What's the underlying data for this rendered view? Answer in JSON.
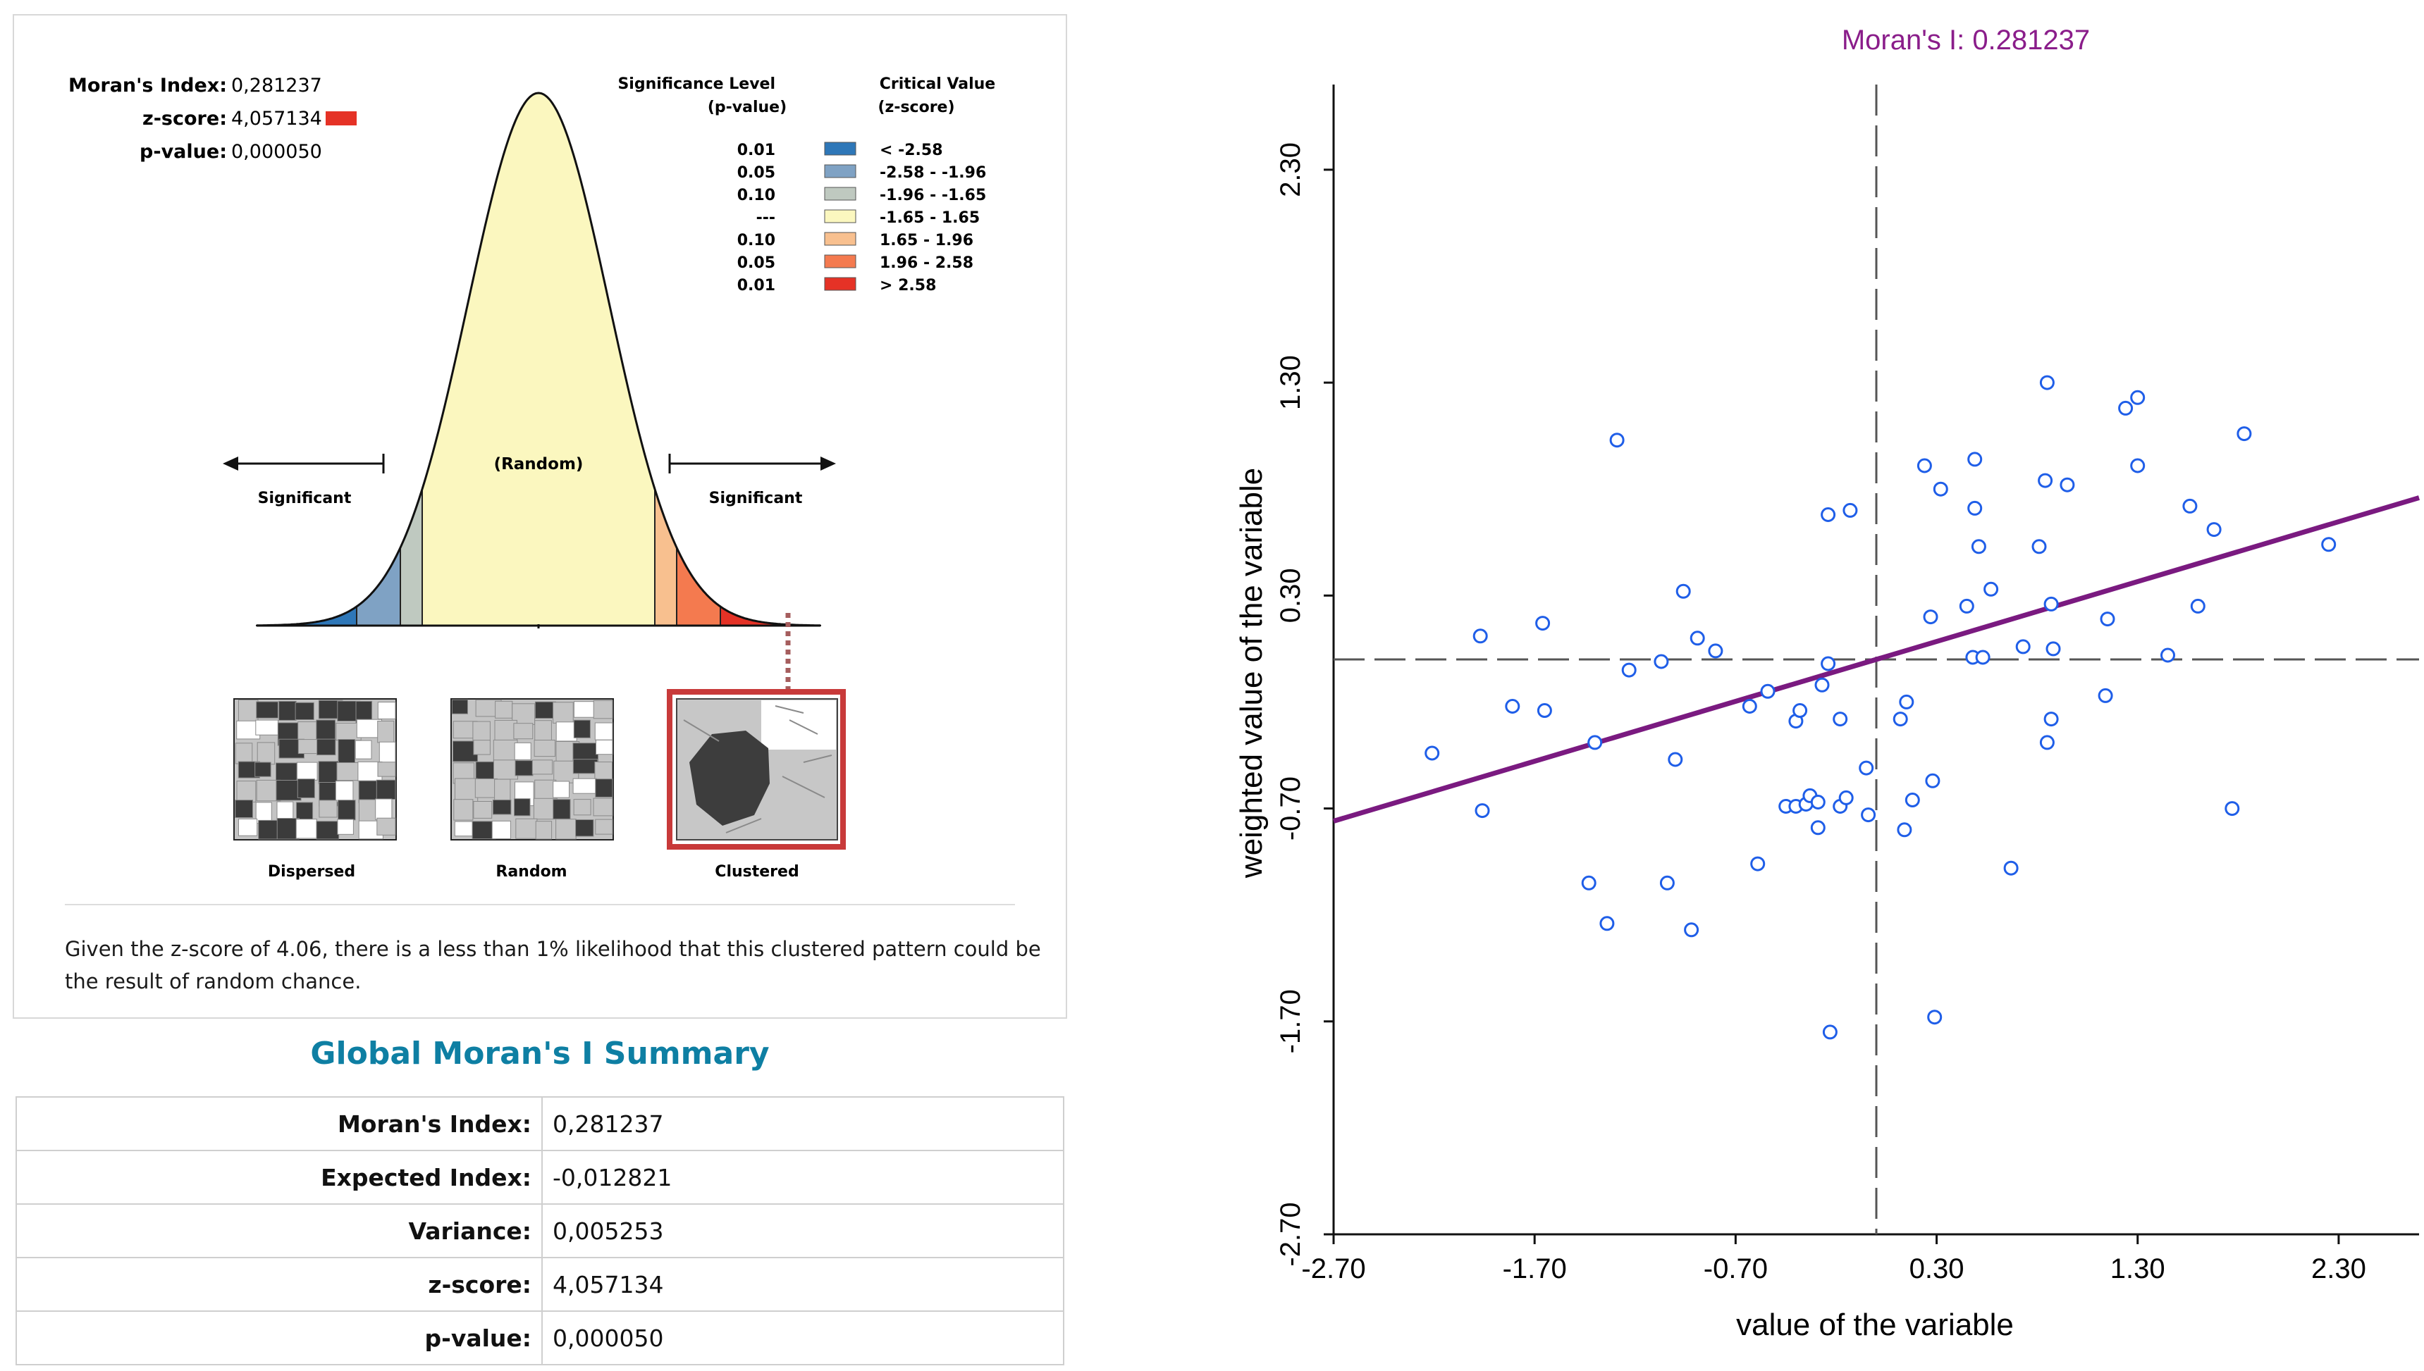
{
  "report": {
    "header": {
      "moran_label": "Moran's Index:",
      "moran_value": "0,281237",
      "z_label": "z-score:",
      "z_value": "4,057134",
      "p_label": "p-value:",
      "p_value": "0,000050"
    },
    "legend": {
      "sig_title_1": "Significance Level",
      "sig_title_2": "(p-value)",
      "crit_title_1": "Critical Value",
      "crit_title_2": "(z-score)",
      "rows": [
        {
          "p": "0.01",
          "range": "< -2.58",
          "color": "#2e77b8"
        },
        {
          "p": "0.05",
          "range": "-2.58 - -1.96",
          "color": "#7fa2c4"
        },
        {
          "p": "0.10",
          "range": "-1.96 - -1.65",
          "color": "#bfc9c0"
        },
        {
          "p": "---",
          "range": "-1.65 - 1.65",
          "color": "#fbf7bf"
        },
        {
          "p": "0.10",
          "range": "1.65 - 1.96",
          "color": "#f8c08f"
        },
        {
          "p": "0.05",
          "range": "1.96 - 2.58",
          "color": "#f47a4f"
        },
        {
          "p": "0.01",
          "range": "> 2.58",
          "color": "#e53226"
        }
      ]
    },
    "curve": {
      "random_label": "(Random)",
      "sig_left": "Significant",
      "sig_right": "Significant"
    },
    "patterns": {
      "dispersed": "Dispersed",
      "random": "Random",
      "clustered": "Clustered"
    },
    "narrative": "Given the z-score of 4.06, there is a less than 1% likelihood that this clustered pattern could be the result of random chance."
  },
  "summary": {
    "title": "Global Moran's I Summary",
    "rows": [
      {
        "label": "Moran's Index:",
        "value": "0,281237"
      },
      {
        "label": "Expected Index:",
        "value": "-0,012821"
      },
      {
        "label": "Variance:",
        "value": "0,005253"
      },
      {
        "label": "z-score:",
        "value": "4,057134"
      },
      {
        "label": "p-value:",
        "value": "0,000050"
      }
    ]
  },
  "colors": {
    "title": "#8a1d8a",
    "regression": "#7a1a80",
    "points": "#1f5ee8",
    "summary_title": "#0e7fa3"
  },
  "chart_data": {
    "type": "scatter",
    "title": "Moran's I: 0.281237",
    "xlabel": "value of the variable",
    "ylabel": "weighted value of the variable",
    "xlim": [
      -2.7,
      2.7
    ],
    "ylim": [
      -2.7,
      2.7
    ],
    "xticks": [
      "-2.70",
      "-1.70",
      "-0.70",
      "0.30",
      "1.30",
      "2.30"
    ],
    "yticks": [
      "-2.70",
      "-1.70",
      "-0.70",
      "0.30",
      "1.30",
      "2.30"
    ],
    "reference_lines": {
      "x": 0.0,
      "y": 0.0
    },
    "regression": {
      "slope": 0.281237,
      "intercept": 0.0
    },
    "points": [
      [
        -2.21,
        -0.44
      ],
      [
        -1.96,
        -0.71
      ],
      [
        -1.97,
        0.11
      ],
      [
        -1.81,
        -0.22
      ],
      [
        -1.65,
        -0.24
      ],
      [
        -1.66,
        0.17
      ],
      [
        -1.43,
        -1.05
      ],
      [
        -1.4,
        -0.39
      ],
      [
        -1.34,
        -1.24
      ],
      [
        -1.29,
        1.03
      ],
      [
        -1.23,
        -0.05
      ],
      [
        -1.07,
        -0.01
      ],
      [
        -1.04,
        -1.05
      ],
      [
        -1.0,
        -0.47
      ],
      [
        -0.96,
        0.32
      ],
      [
        -0.92,
        -1.27
      ],
      [
        -0.89,
        0.1
      ],
      [
        -0.8,
        0.04
      ],
      [
        -0.63,
        -0.22
      ],
      [
        -0.59,
        -0.96
      ],
      [
        -0.54,
        -0.15
      ],
      [
        -0.45,
        -0.69
      ],
      [
        -0.4,
        -0.69
      ],
      [
        -0.4,
        -0.29
      ],
      [
        -0.38,
        -0.24
      ],
      [
        -0.35,
        -0.68
      ],
      [
        -0.33,
        -0.64
      ],
      [
        -0.29,
        -0.79
      ],
      [
        -0.29,
        -0.67
      ],
      [
        -0.27,
        -0.12
      ],
      [
        -0.24,
        -0.02
      ],
      [
        -0.24,
        0.68
      ],
      [
        -0.23,
        -1.75
      ],
      [
        -0.18,
        -0.28
      ],
      [
        -0.18,
        -0.69
      ],
      [
        -0.15,
        -0.65
      ],
      [
        -0.13,
        0.7
      ],
      [
        -0.05,
        -0.51
      ],
      [
        -0.04,
        -0.73
      ],
      [
        0.12,
        -0.28
      ],
      [
        0.14,
        -0.8
      ],
      [
        0.15,
        -0.2
      ],
      [
        0.18,
        -0.66
      ],
      [
        0.24,
        0.91
      ],
      [
        0.27,
        0.2
      ],
      [
        0.28,
        -0.57
      ],
      [
        0.29,
        -1.68
      ],
      [
        0.32,
        0.8
      ],
      [
        0.45,
        0.25
      ],
      [
        0.48,
        0.01
      ],
      [
        0.49,
        0.71
      ],
      [
        0.49,
        0.94
      ],
      [
        0.51,
        0.53
      ],
      [
        0.53,
        0.01
      ],
      [
        0.57,
        0.33
      ],
      [
        0.67,
        -0.98
      ],
      [
        0.73,
        0.06
      ],
      [
        0.81,
        0.53
      ],
      [
        0.84,
        0.84
      ],
      [
        0.85,
        1.3
      ],
      [
        0.85,
        -0.39
      ],
      [
        0.87,
        -0.28
      ],
      [
        0.87,
        0.26
      ],
      [
        0.88,
        0.05
      ],
      [
        0.95,
        0.82
      ],
      [
        1.14,
        -0.17
      ],
      [
        1.15,
        0.19
      ],
      [
        1.24,
        1.18
      ],
      [
        1.3,
        0.91
      ],
      [
        1.3,
        1.23
      ],
      [
        1.45,
        0.02
      ],
      [
        1.56,
        0.72
      ],
      [
        1.6,
        0.25
      ],
      [
        1.68,
        0.61
      ],
      [
        1.77,
        -0.7
      ],
      [
        1.83,
        1.06
      ],
      [
        2.25,
        0.54
      ]
    ]
  }
}
